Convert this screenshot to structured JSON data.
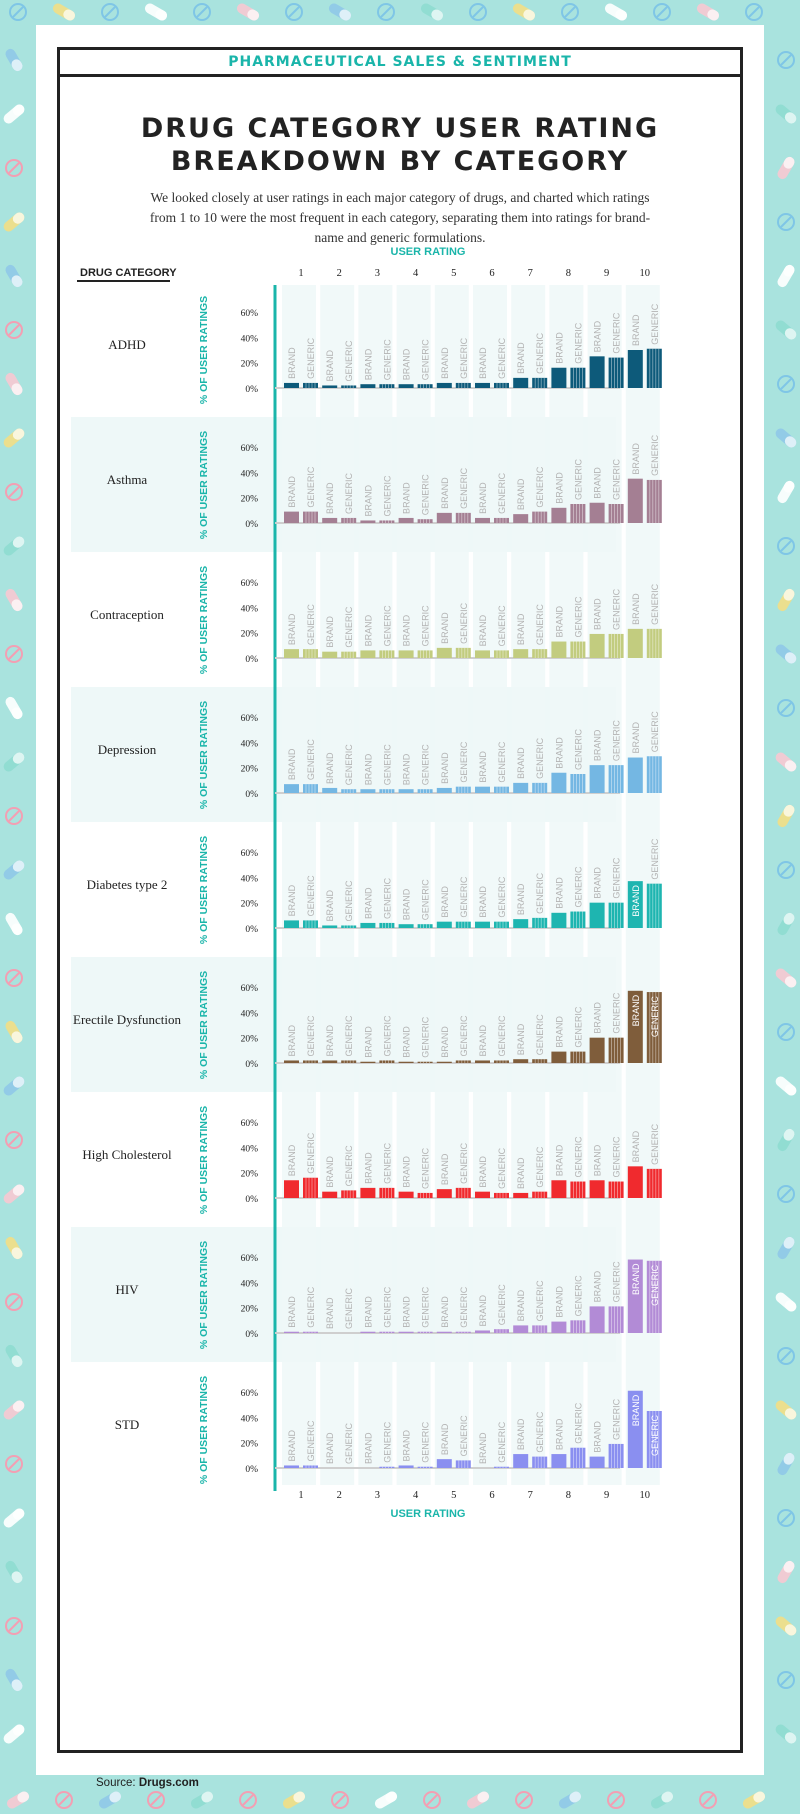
{
  "header": {
    "banner": "PHARMACEUTICAL SALES & SENTIMENT",
    "title_line1": "DRUG CATEGORY USER RATING",
    "title_line2": "BREAKDOWN BY CATEGORY",
    "intro": "We looked closely at user ratings in each major category of drugs, and charted which ratings from 1 to 10 were the most frequent in each category, separating them into ratings for brand-name and generic formulations."
  },
  "footer": {
    "source_label": "Source:",
    "source_name": "Drugs.com"
  },
  "colors": {
    "background": "#a9e3de",
    "accent": "#1ab5aa",
    "column_band": "#eef8f8",
    "stripe": "#eef8f8"
  },
  "chart_data": {
    "type": "bar",
    "column_header": "DRUG CATEGORY",
    "top_axis_label": "USER RATING",
    "bottom_axis_label": "USER RATING",
    "ylabel": "% OF USER RATINGS",
    "yticks": [
      "0%",
      "20%",
      "40%",
      "60%"
    ],
    "ylim": [
      0,
      60
    ],
    "categories": [
      "1",
      "2",
      "3",
      "4",
      "5",
      "6",
      "7",
      "8",
      "9",
      "10"
    ],
    "bar_labels": [
      "BRAND",
      "GENERIC"
    ],
    "panels": [
      {
        "name": "ADHD",
        "color": "#0d5a7a",
        "series": [
          {
            "name": "BRAND",
            "values": [
              4,
              2,
              3,
              3,
              4,
              4,
              8,
              16,
              25,
              30
            ]
          },
          {
            "name": "GENERIC",
            "values": [
              4,
              2,
              3,
              3,
              4,
              4,
              8,
              16,
              24,
              31
            ]
          }
        ]
      },
      {
        "name": "Asthma",
        "color": "#a47f93",
        "series": [
          {
            "name": "BRAND",
            "values": [
              9,
              4,
              2,
              4,
              8,
              4,
              7,
              12,
              16,
              35
            ]
          },
          {
            "name": "GENERIC",
            "values": [
              9,
              4,
              2,
              3,
              8,
              4,
              9,
              15,
              15,
              34
            ]
          }
        ]
      },
      {
        "name": "Contraception",
        "color": "#c2cc7f",
        "series": [
          {
            "name": "BRAND",
            "values": [
              7,
              5,
              6,
              6,
              8,
              6,
              7,
              13,
              19,
              23
            ]
          },
          {
            "name": "GENERIC",
            "values": [
              7,
              5,
              6,
              6,
              8,
              6,
              7,
              13,
              19,
              23
            ]
          }
        ]
      },
      {
        "name": "Depression",
        "color": "#74b7e3",
        "series": [
          {
            "name": "BRAND",
            "values": [
              7,
              4,
              3,
              3,
              4,
              5,
              8,
              16,
              22,
              28
            ]
          },
          {
            "name": "GENERIC",
            "values": [
              7,
              3,
              3,
              3,
              5,
              5,
              8,
              15,
              22,
              29
            ]
          }
        ]
      },
      {
        "name": "Diabetes type 2",
        "color": "#1eb5b0",
        "series": [
          {
            "name": "BRAND",
            "values": [
              6,
              2,
              4,
              3,
              5,
              5,
              7,
              12,
              20,
              37
            ]
          },
          {
            "name": "GENERIC",
            "values": [
              6,
              2,
              4,
              3,
              5,
              5,
              8,
              13,
              20,
              35
            ]
          }
        ]
      },
      {
        "name": "Erectile Dysfunction",
        "color": "#7f5d3b",
        "series": [
          {
            "name": "BRAND",
            "values": [
              2,
              2,
              1,
              1,
              1,
              2,
              3,
              9,
              20,
              57
            ]
          },
          {
            "name": "GENERIC",
            "values": [
              2,
              2,
              2,
              1,
              2,
              2,
              3,
              9,
              20,
              56
            ]
          }
        ]
      },
      {
        "name": "High Cholesterol",
        "color": "#f02a2e",
        "series": [
          {
            "name": "BRAND",
            "values": [
              14,
              5,
              8,
              5,
              7,
              5,
              4,
              14,
              14,
              25
            ]
          },
          {
            "name": "GENERIC",
            "values": [
              16,
              6,
              8,
              4,
              8,
              4,
              5,
              13,
              13,
              23
            ]
          }
        ]
      },
      {
        "name": "HIV",
        "color": "#b28bd6",
        "series": [
          {
            "name": "BRAND",
            "values": [
              1,
              0,
              1,
              1,
              1,
              2,
              6,
              9,
              21,
              58
            ]
          },
          {
            "name": "GENERIC",
            "values": [
              1,
              0,
              1,
              1,
              1,
              3,
              6,
              10,
              21,
              57
            ]
          }
        ]
      },
      {
        "name": "STD",
        "color": "#8a8ff0",
        "series": [
          {
            "name": "BRAND",
            "values": [
              2,
              0,
              0,
              2,
              7,
              0,
              11,
              11,
              9,
              61
            ]
          },
          {
            "name": "GENERIC",
            "values": [
              2,
              0,
              1,
              1,
              6,
              1,
              9,
              16,
              19,
              45
            ]
          }
        ]
      }
    ]
  }
}
